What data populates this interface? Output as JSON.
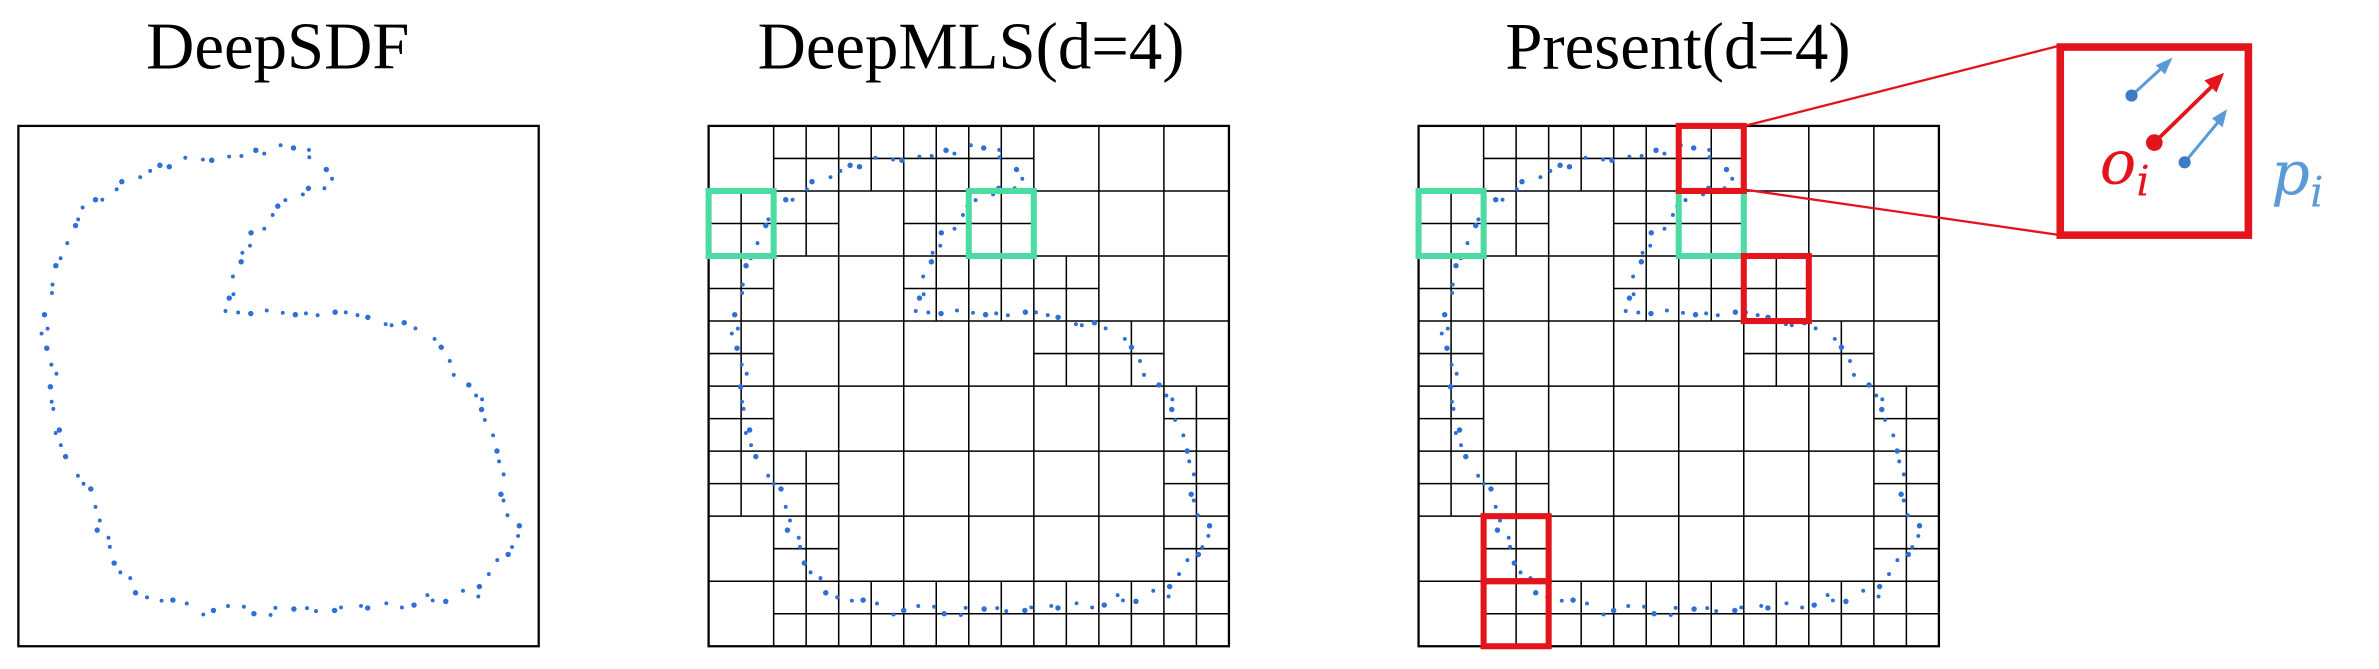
{
  "panels": [
    {
      "title": "DeepSDF"
    },
    {
      "title": "DeepMLS(d=4)"
    },
    {
      "title": "Present(d=4)"
    }
  ],
  "inset": {
    "origin_label": "o",
    "origin_subscript": "i",
    "point_label": "p",
    "point_subscript": "i"
  }
}
